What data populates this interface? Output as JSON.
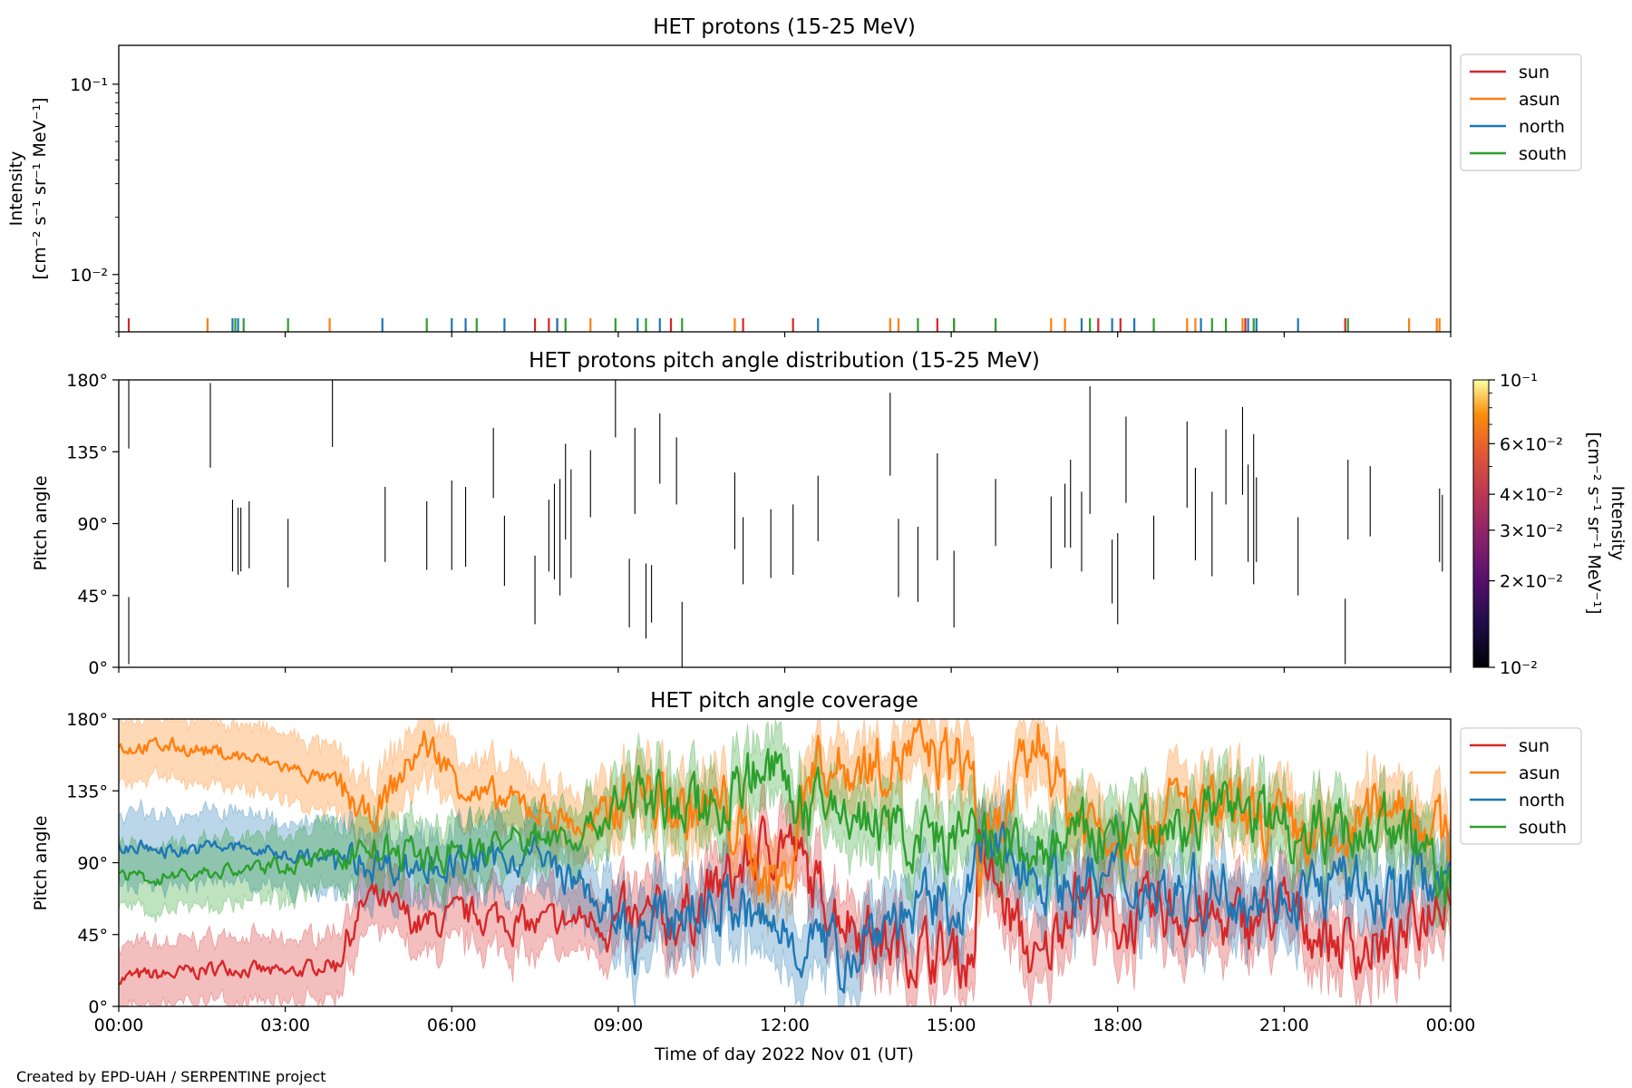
{
  "credit": "Created by EPD-UAH / SERPENTINE project",
  "xlabel": "Time of day 2022 Nov 01 (UT)",
  "x_ticks": [
    "00:00",
    "03:00",
    "06:00",
    "09:00",
    "12:00",
    "15:00",
    "18:00",
    "21:00",
    "00:00"
  ],
  "colors": {
    "sun": "#d62728",
    "asun": "#ff7f0e",
    "north": "#1f77b4",
    "south": "#2ca02c"
  },
  "chart_data": [
    {
      "type": "line",
      "title": "HET protons (15-25 MeV)",
      "ylabel_line1": "Intensity",
      "ylabel_line2": "[cm⁻² s⁻¹ sr⁻¹ MeV⁻¹]",
      "yscale": "log",
      "ylim": [
        0.005,
        0.16
      ],
      "y_ticks": [
        "10⁻¹",
        "10⁻²"
      ],
      "x_range_hours": [
        0,
        24
      ],
      "legend": [
        "sun",
        "asun",
        "north",
        "south"
      ],
      "legend_position": "outside upper right",
      "series": [
        {
          "name": "sun",
          "y": 0.0055,
          "x": [
            0.18,
            7.5,
            7.75,
            7.9,
            9.95,
            11.25,
            12.15,
            14.75,
            15.05,
            17.65,
            18.05,
            20.3,
            22.1
          ]
        },
        {
          "name": "asun",
          "x": [
            1.6,
            3.8,
            8.5,
            11.1,
            13.9,
            14.05,
            16.8,
            17.05,
            19.25,
            19.4,
            20.25,
            23.25,
            23.75,
            23.8
          ]
        },
        {
          "name": "north",
          "x": [
            2.05,
            2.15,
            4.75,
            6.0,
            6.25,
            6.95,
            7.9,
            9.35,
            9.75,
            12.6,
            17.35,
            17.9,
            18.3,
            19.5,
            20.35,
            20.5,
            21.25
          ]
        },
        {
          "name": "south",
          "x": [
            2.1,
            2.25,
            3.05,
            5.55,
            6.45,
            8.05,
            8.95,
            9.5,
            10.15,
            14.4,
            15.05,
            15.8,
            17.5,
            18.65,
            19.7,
            19.95,
            20.45,
            22.15
          ]
        }
      ]
    },
    {
      "type": "heatmap",
      "title": "HET protons pitch angle distribution (15-25 MeV)",
      "ylabel": "Pitch angle",
      "ylim": [
        0,
        180
      ],
      "y_ticks": [
        "180°",
        "135°",
        "90°",
        "45°",
        "0°"
      ],
      "colorbar": {
        "label_line1": "Intensity",
        "label_line2": "[cm⁻² s⁻¹ sr⁻¹ MeV⁻¹]",
        "scale": "log",
        "range": [
          0.01,
          0.1
        ],
        "ticks": [
          {
            "value": 0.1,
            "label": "10⁻¹"
          },
          {
            "value": 0.06,
            "label": "6×10⁻²"
          },
          {
            "value": 0.04,
            "label": "4×10⁻²"
          },
          {
            "value": 0.03,
            "label": "3×10⁻²"
          },
          {
            "value": 0.02,
            "label": "2×10⁻²"
          },
          {
            "value": 0.01,
            "label": "10⁻²"
          }
        ]
      },
      "segments": [
        [
          0.18,
          137,
          180
        ],
        [
          0.18,
          2,
          44
        ],
        [
          1.65,
          125,
          178
        ],
        [
          2.05,
          60,
          105
        ],
        [
          2.15,
          58,
          100
        ],
        [
          2.2,
          60,
          100
        ],
        [
          2.35,
          62,
          104
        ],
        [
          3.05,
          50,
          93
        ],
        [
          3.85,
          138,
          180
        ],
        [
          4.8,
          66,
          113
        ],
        [
          5.55,
          61,
          104
        ],
        [
          6.0,
          61,
          117
        ],
        [
          6.25,
          63,
          113
        ],
        [
          6.75,
          106,
          150
        ],
        [
          6.95,
          51,
          95
        ],
        [
          7.5,
          27,
          70
        ],
        [
          7.75,
          60,
          105
        ],
        [
          7.85,
          55,
          115
        ],
        [
          7.95,
          45,
          118
        ],
        [
          8.05,
          80,
          140
        ],
        [
          8.15,
          56,
          124
        ],
        [
          8.5,
          94,
          136
        ],
        [
          8.95,
          144,
          180
        ],
        [
          9.2,
          25,
          68
        ],
        [
          9.3,
          96,
          150
        ],
        [
          9.5,
          18,
          65
        ],
        [
          9.6,
          28,
          64
        ],
        [
          9.75,
          115,
          159
        ],
        [
          10.05,
          102,
          144
        ],
        [
          10.15,
          0,
          41
        ],
        [
          11.1,
          74,
          122
        ],
        [
          11.25,
          52,
          94
        ],
        [
          11.75,
          56,
          99
        ],
        [
          12.15,
          58,
          102
        ],
        [
          12.6,
          79,
          120
        ],
        [
          13.9,
          120,
          172
        ],
        [
          14.05,
          44,
          93
        ],
        [
          14.4,
          41,
          88
        ],
        [
          14.75,
          67,
          134
        ],
        [
          15.05,
          25,
          73
        ],
        [
          15.8,
          76,
          118
        ],
        [
          16.8,
          62,
          107
        ],
        [
          17.05,
          75,
          115
        ],
        [
          17.15,
          75,
          130
        ],
        [
          17.35,
          60,
          110
        ],
        [
          17.5,
          96,
          176
        ],
        [
          17.9,
          40,
          80
        ],
        [
          18.0,
          27,
          84
        ],
        [
          18.15,
          103,
          157
        ],
        [
          18.65,
          55,
          95
        ],
        [
          19.25,
          100,
          154
        ],
        [
          19.4,
          67,
          125
        ],
        [
          19.7,
          57,
          110
        ],
        [
          19.95,
          102,
          149
        ],
        [
          20.25,
          108,
          163
        ],
        [
          20.35,
          66,
          127
        ],
        [
          20.45,
          52,
          146
        ],
        [
          20.5,
          66,
          119
        ],
        [
          21.25,
          45,
          94
        ],
        [
          22.15,
          80,
          130
        ],
        [
          22.1,
          2,
          43
        ],
        [
          22.55,
          82,
          126
        ],
        [
          23.8,
          66,
          112
        ],
        [
          23.85,
          60,
          108
        ]
      ]
    },
    {
      "type": "area",
      "title": "HET pitch angle coverage",
      "ylabel": "Pitch angle",
      "ylim": [
        0,
        180
      ],
      "y_ticks": [
        "180°",
        "135°",
        "90°",
        "45°",
        "0°"
      ],
      "x_range_hours": [
        0,
        24
      ],
      "legend": [
        "sun",
        "asun",
        "north",
        "south"
      ],
      "legend_position": "outside upper right",
      "series": [
        {
          "name": "sun",
          "approx_points": [
            [
              0,
              18
            ],
            [
              1,
              20
            ],
            [
              2,
              25
            ],
            [
              3,
              20
            ],
            [
              3.9,
              28
            ],
            [
              4.5,
              68
            ],
            [
              5.5,
              50
            ],
            [
              6.5,
              58
            ],
            [
              7.5,
              50
            ],
            [
              8.5,
              55
            ],
            [
              9.2,
              48
            ],
            [
              10.2,
              58
            ],
            [
              10.9,
              75
            ],
            [
              11.5,
              95
            ],
            [
              12,
              108
            ],
            [
              12.5,
              75
            ],
            [
              13,
              60
            ],
            [
              13.8,
              40
            ],
            [
              14.5,
              35
            ],
            [
              15.4,
              30
            ],
            [
              15.5,
              95
            ],
            [
              16.6,
              20
            ],
            [
              17.2,
              75
            ],
            [
              18,
              50
            ],
            [
              19,
              60
            ],
            [
              20,
              50
            ],
            [
              21,
              60
            ],
            [
              22,
              40
            ],
            [
              23,
              35
            ],
            [
              24,
              80
            ]
          ],
          "band_halfwidth": 20
        },
        {
          "name": "asun",
          "approx_points": [
            [
              0,
              162
            ],
            [
              1,
              163
            ],
            [
              2,
              158
            ],
            [
              3,
              150
            ],
            [
              3.9,
              140
            ],
            [
              4.5,
              115
            ],
            [
              5.5,
              165
            ],
            [
              6.5,
              130
            ],
            [
              7.5,
              125
            ],
            [
              8.5,
              110
            ],
            [
              9.2,
              138
            ],
            [
              10.2,
              120
            ],
            [
              10.9,
              125
            ],
            [
              11.5,
              90
            ],
            [
              12,
              75
            ],
            [
              12.5,
              155
            ],
            [
              13,
              148
            ],
            [
              13.8,
              155
            ],
            [
              14.5,
              158
            ],
            [
              15.4,
              150
            ],
            [
              15.5,
              80
            ],
            [
              16.6,
              170
            ],
            [
              17.2,
              120
            ],
            [
              18,
              110
            ],
            [
              19,
              125
            ],
            [
              20,
              120
            ],
            [
              21,
              110
            ],
            [
              22,
              100
            ],
            [
              23,
              135
            ],
            [
              24,
              100
            ]
          ],
          "band_halfwidth": 20
        },
        {
          "name": "north",
          "approx_points": [
            [
              0,
              100
            ],
            [
              1,
              98
            ],
            [
              2,
              100
            ],
            [
              3,
              95
            ],
            [
              3.9,
              92
            ],
            [
              4.5,
              90
            ],
            [
              5.5,
              88
            ],
            [
              6.5,
              90
            ],
            [
              7.5,
              95
            ],
            [
              8.5,
              70
            ],
            [
              9.2,
              40
            ],
            [
              10.2,
              60
            ],
            [
              10.9,
              65
            ],
            [
              11.5,
              50
            ],
            [
              12,
              48
            ],
            [
              12.5,
              40
            ],
            [
              13,
              30
            ],
            [
              13.8,
              55
            ],
            [
              14.5,
              60
            ],
            [
              15.4,
              68
            ],
            [
              15.5,
              100
            ],
            [
              16.6,
              85
            ],
            [
              17.2,
              75
            ],
            [
              18,
              80
            ],
            [
              19,
              70
            ],
            [
              20,
              75
            ],
            [
              21,
              70
            ],
            [
              22,
              75
            ],
            [
              23,
              70
            ],
            [
              24,
              90
            ]
          ],
          "band_halfwidth": 22
        },
        {
          "name": "south",
          "approx_points": [
            [
              0,
              80
            ],
            [
              1,
              82
            ],
            [
              2,
              85
            ],
            [
              3,
              88
            ],
            [
              3.9,
              95
            ],
            [
              4.5,
              100
            ],
            [
              5.5,
              92
            ],
            [
              6.5,
              100
            ],
            [
              7.5,
              105
            ],
            [
              8.5,
              110
            ],
            [
              9.2,
              135
            ],
            [
              10.2,
              120
            ],
            [
              10.9,
              130
            ],
            [
              11.5,
              150
            ],
            [
              12,
              140
            ],
            [
              12.5,
              120
            ],
            [
              13,
              125
            ],
            [
              13.8,
              110
            ],
            [
              14.5,
              105
            ],
            [
              15.4,
              105
            ],
            [
              15.5,
              100
            ],
            [
              16.6,
              95
            ],
            [
              17.2,
              105
            ],
            [
              18,
              110
            ],
            [
              19,
              110
            ],
            [
              20,
              125
            ],
            [
              21,
              115
            ],
            [
              22,
              110
            ],
            [
              23,
              115
            ],
            [
              24,
              75
            ]
          ],
          "band_halfwidth": 20
        }
      ]
    }
  ]
}
